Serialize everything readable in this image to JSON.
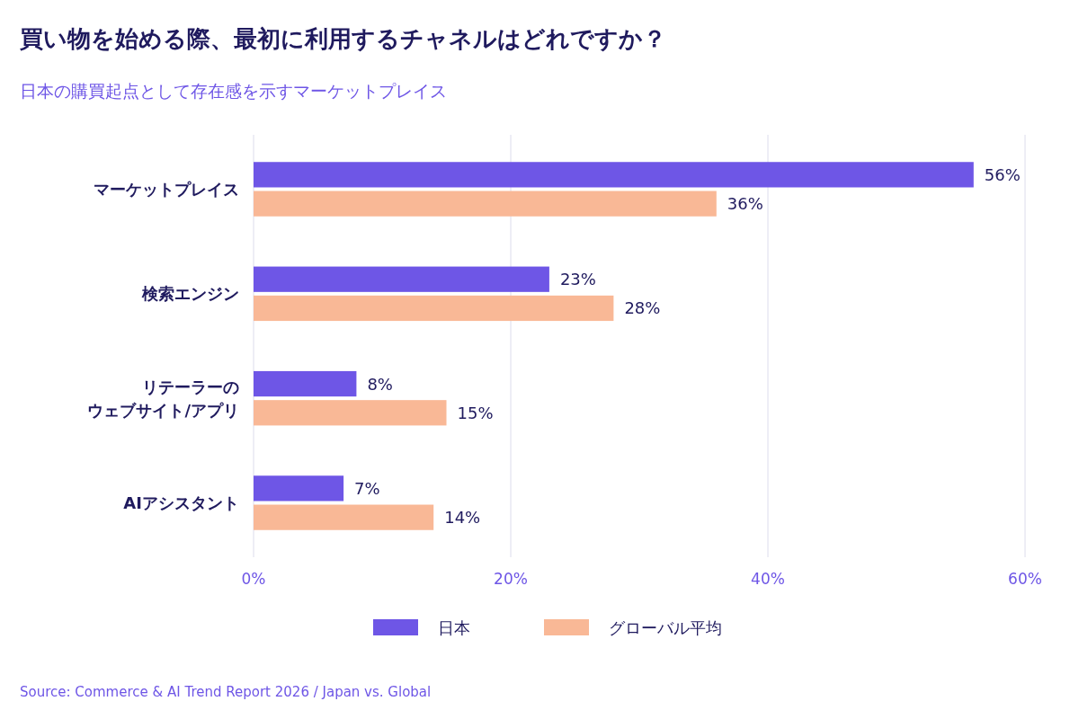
{
  "chart_data": {
    "type": "bar",
    "orientation": "horizontal",
    "title": "買い物を始める際、最初に利用するチャネルはどれですか？",
    "subtitle": "日本の購買起点として存在感を示すマーケットプレイス",
    "categories": [
      "マーケットプレイス",
      "検索エンジン",
      "リテーラーのウェブサイト/アプリ",
      "AIアシスタント"
    ],
    "series": [
      {
        "name": "日本",
        "color": "#6e56e6",
        "values": [
          56,
          23,
          8,
          7
        ],
        "value_labels": [
          "56%",
          "23%",
          "8%",
          "7%"
        ]
      },
      {
        "name": "グローバル平均",
        "color": "#f9b896",
        "values": [
          36,
          28,
          15,
          14
        ],
        "value_labels": [
          "36%",
          "28%",
          "15%",
          "14%"
        ]
      }
    ],
    "xlim": [
      0,
      60
    ],
    "xticks": [
      {
        "value": 0,
        "label": "0%"
      },
      {
        "value": 20,
        "label": "20%"
      },
      {
        "value": 40,
        "label": "40%"
      },
      {
        "value": 60,
        "label": "60%"
      }
    ],
    "grid": "x",
    "legend": "bottom",
    "annotations": [
      "Source: Commerce & AI Trend Report 2026 / Japan vs. Global"
    ]
  }
}
